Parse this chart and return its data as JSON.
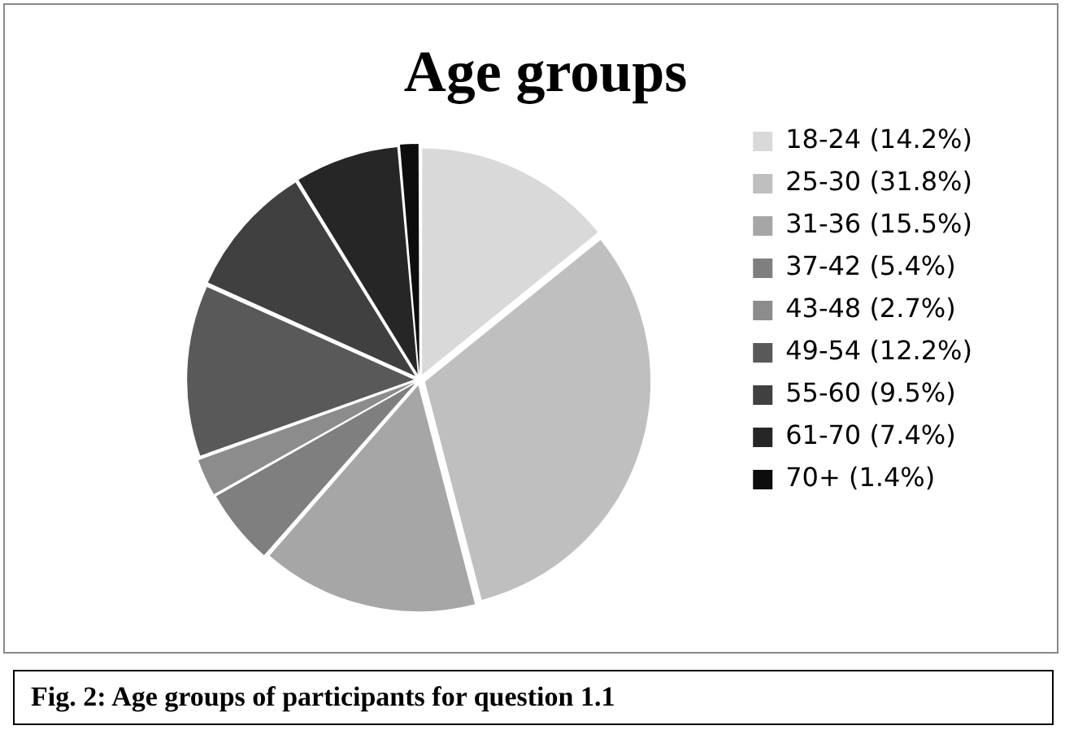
{
  "chart_data": {
    "type": "pie",
    "title": "Age groups",
    "categories": [
      "18-24 (14.2%)",
      "25-30 (31.8%)",
      "31-36 (15.5%)",
      "37-42 (5.4%)",
      "43-48 (2.7%)",
      "49-54 (12.2%)",
      "55-60 (9.5%)",
      "61-70 (7.4%)",
      "70+ (1.4%)"
    ],
    "values": [
      14.2,
      31.8,
      15.5,
      5.4,
      2.7,
      12.2,
      9.5,
      7.4,
      1.4
    ],
    "colors": [
      "#d9d9d9",
      "#bfbfbf",
      "#a6a6a6",
      "#7f7f7f",
      "#8c8c8c",
      "#595959",
      "#404040",
      "#262626",
      "#0d0d0d"
    ],
    "legend": "right",
    "annotations": [
      "Fig. 2: Age groups of participants for question 1.1"
    ]
  }
}
